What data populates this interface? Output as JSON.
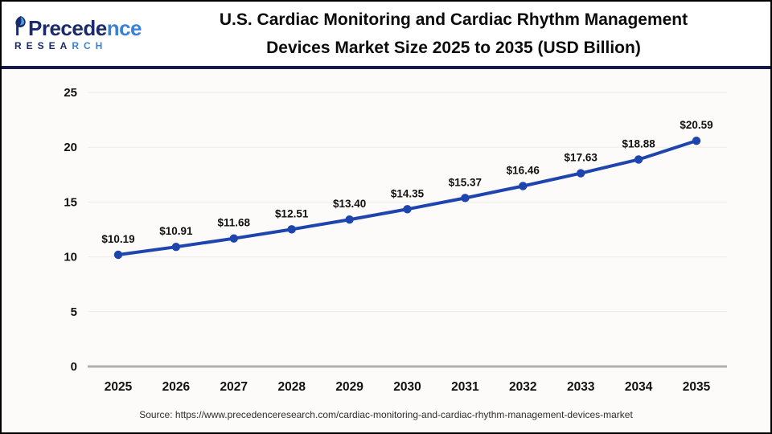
{
  "header": {
    "logo": {
      "brand_part1": "Precede",
      "brand_part2": "nce",
      "subtitle_part1": "RESEA",
      "subtitle_part2": "RCH"
    },
    "title_line1": "U.S. Cardiac Monitoring and Cardiac Rhythm Management",
    "title_line2": "Devices Market Size 2025 to 2035 (USD Billion)"
  },
  "chart_data": {
    "type": "line",
    "title": "U.S. Cardiac Monitoring and Cardiac Rhythm Management Devices Market Size 2025 to 2035 (USD Billion)",
    "categories": [
      "2025",
      "2026",
      "2027",
      "2028",
      "2029",
      "2030",
      "2031",
      "2032",
      "2033",
      "2034",
      "2035"
    ],
    "values": [
      10.19,
      10.91,
      11.68,
      12.51,
      13.4,
      14.35,
      15.37,
      16.46,
      17.63,
      18.88,
      20.59
    ],
    "point_labels": [
      "$10.19",
      "$10.91",
      "$11.68",
      "$12.51",
      "$13.40",
      "$14.35",
      "$15.37",
      "$16.46",
      "$17.63",
      "$18.88",
      "$20.59"
    ],
    "xlabel": "",
    "ylabel": "",
    "ylim": [
      0,
      25
    ],
    "yticks": [
      0,
      5,
      10,
      15,
      20,
      25
    ],
    "grid": "horizontal",
    "legend": "none",
    "line_color": "#1e44ad",
    "marker": "circle",
    "grid_color": "#ebebe8",
    "zero_axis_color": "#b0b0ae",
    "label_color": "#111111"
  },
  "footer": {
    "source": "Source: https://www.precedenceresearch.com/cardiac-monitoring-and-cardiac-rhythm-management-devices-market"
  },
  "colors": {
    "divider_navy": "#141b47",
    "logo_navy": "#1b2a6b",
    "logo_blue": "#3b82d6"
  }
}
